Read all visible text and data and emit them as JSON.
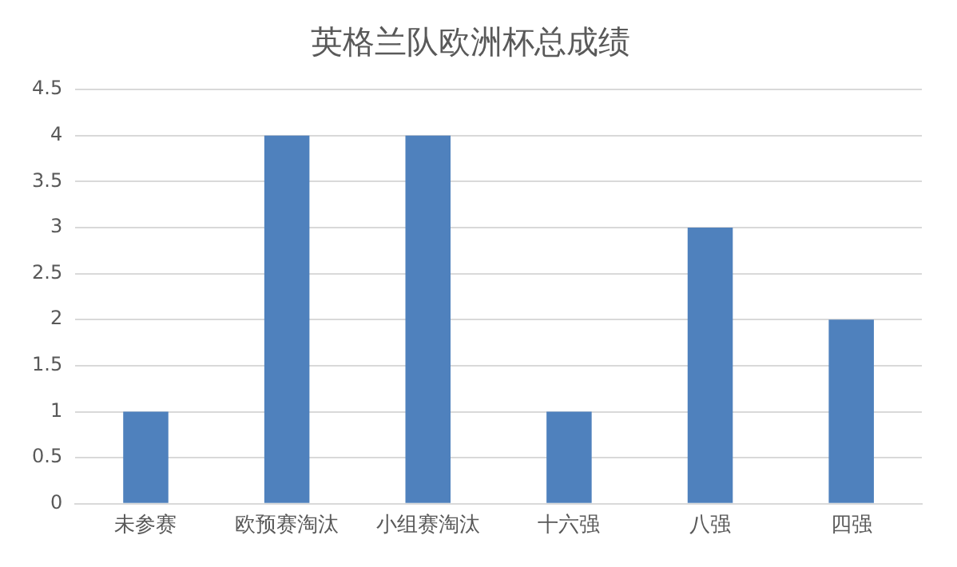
{
  "chart_data": {
    "type": "bar",
    "title": "英格兰队欧洲杯总成绩",
    "categories": [
      "未参赛",
      "欧预赛淘汰",
      "小组赛淘汰",
      "十六强",
      "八强",
      "四强"
    ],
    "values": [
      1,
      4,
      4,
      1,
      3,
      2
    ],
    "color": "#4f81bd",
    "ylim": [
      0,
      4.5
    ],
    "yticks": [
      0,
      0.5,
      1,
      1.5,
      2,
      2.5,
      3,
      3.5,
      4,
      4.5
    ],
    "grid": "y",
    "legend": false
  }
}
